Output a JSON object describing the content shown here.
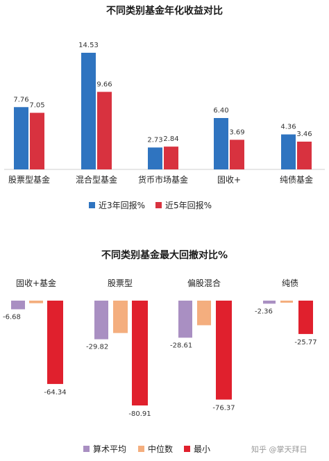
{
  "chart_data": [
    {
      "type": "bar",
      "title": "不同类别基金年化收益对比",
      "categories": [
        "股票型基金",
        "混合型基金",
        "货币市场基金",
        "固收+",
        "纯债基金"
      ],
      "series": [
        {
          "name": "近3年回报%",
          "color": "#2f74c0",
          "values": [
            7.76,
            14.53,
            2.73,
            6.4,
            4.36
          ],
          "labels": [
            "7.76",
            "14.53",
            "2.73",
            "6.40",
            "4.36"
          ]
        },
        {
          "name": "近5年回报%",
          "color": "#d8323f",
          "values": [
            7.05,
            9.66,
            2.84,
            3.69,
            3.46
          ],
          "labels": [
            "7.05",
            "9.66",
            "2.84",
            "3.69",
            "3.46"
          ]
        }
      ],
      "ylim": [
        0,
        15
      ],
      "legend": "bottom-center"
    },
    {
      "type": "bar",
      "title": "不同类别基金最大回撤对比%",
      "categories": [
        "固收+基金",
        "股票型",
        "偏股混合",
        "纯债"
      ],
      "series": [
        {
          "name": "算术平均",
          "color": "#a98fc2",
          "values": [
            -6.68,
            -29.82,
            -28.61,
            -2.36
          ],
          "labels": [
            "-6.68",
            "-29.82",
            "-28.61",
            "-2.36"
          ]
        },
        {
          "name": "中位数",
          "color": "#f4ae7e",
          "values": [
            -2.0,
            -25.0,
            -19.0,
            -1.0
          ],
          "labels": [
            "",
            "",
            "",
            ""
          ]
        },
        {
          "name": "最小",
          "color": "#e0202d",
          "values": [
            -64.34,
            -80.91,
            -76.37,
            -25.77
          ],
          "labels": [
            "-64.34",
            "-80.91",
            "-76.37",
            "-25.77"
          ]
        }
      ],
      "ylim": [
        -85,
        0
      ],
      "legend": "bottom-center"
    }
  ],
  "watermark": "知乎 @掌天拜日"
}
